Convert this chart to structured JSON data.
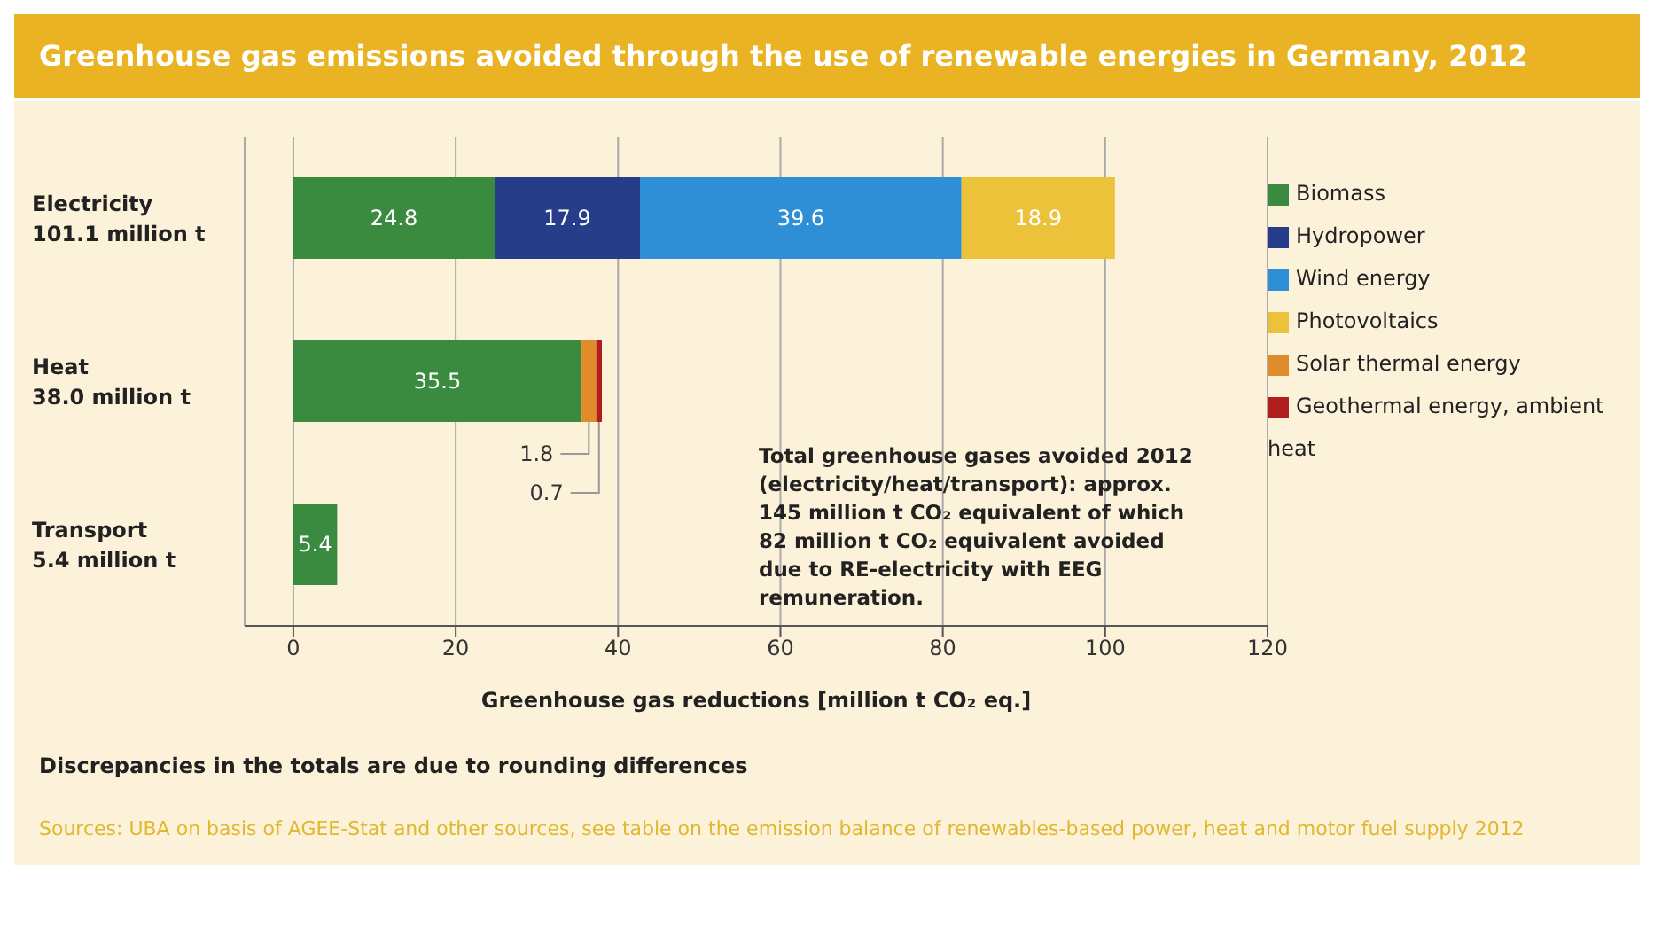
{
  "chart_data": {
    "type": "bar",
    "orientation": "horizontal",
    "stacked": true,
    "title": "Greenhouse gas emissions avoided through the use of renewable energies in Germany, 2012",
    "categories": [
      "Electricity\n101.1 million t",
      "Heat\n38.0 million t",
      "Transport\n5.4 million t"
    ],
    "series": [
      {
        "name": "Biomass",
        "color": "#3a8a3f",
        "values": [
          24.8,
          35.5,
          5.4
        ]
      },
      {
        "name": "Hydropower",
        "color": "#263d8a",
        "values": [
          17.9,
          null,
          null
        ]
      },
      {
        "name": "Wind energy",
        "color": "#2e8fd6",
        "values": [
          39.6,
          null,
          null
        ]
      },
      {
        "name": "Photovoltaics",
        "color": "#ecc23a",
        "values": [
          18.9,
          null,
          null
        ]
      },
      {
        "name": "Solar thermal energy",
        "color": "#e08c2a",
        "values": [
          null,
          1.8,
          null
        ]
      },
      {
        "name": "Geothermal energy, ambient heat",
        "color": "#b01e1e",
        "values": [
          null,
          0.7,
          null
        ]
      }
    ],
    "xlim": [
      -6,
      120
    ],
    "xticks": [
      0,
      20,
      40,
      60,
      80,
      100,
      120
    ],
    "xlabel": "Greenhouse gas reductions [million t CO₂ eq.]",
    "grid": "x",
    "legend": "right",
    "data_labels": true,
    "annotations": [
      "Total greenhouse gases avoided 2012 (electricity/heat/transport): approx. 145 million t CO₂ equivalent of which 82 million t CO₂ equivalent avoided due to RE-electricity with EEG remuneration.",
      "Discrepancies in the totals are due to rounding differences",
      "Sources: UBA on basis of AGEE-Stat and other sources, see table on the emission balance of renewables-based power, heat and motor fuel supply 2012"
    ]
  }
}
